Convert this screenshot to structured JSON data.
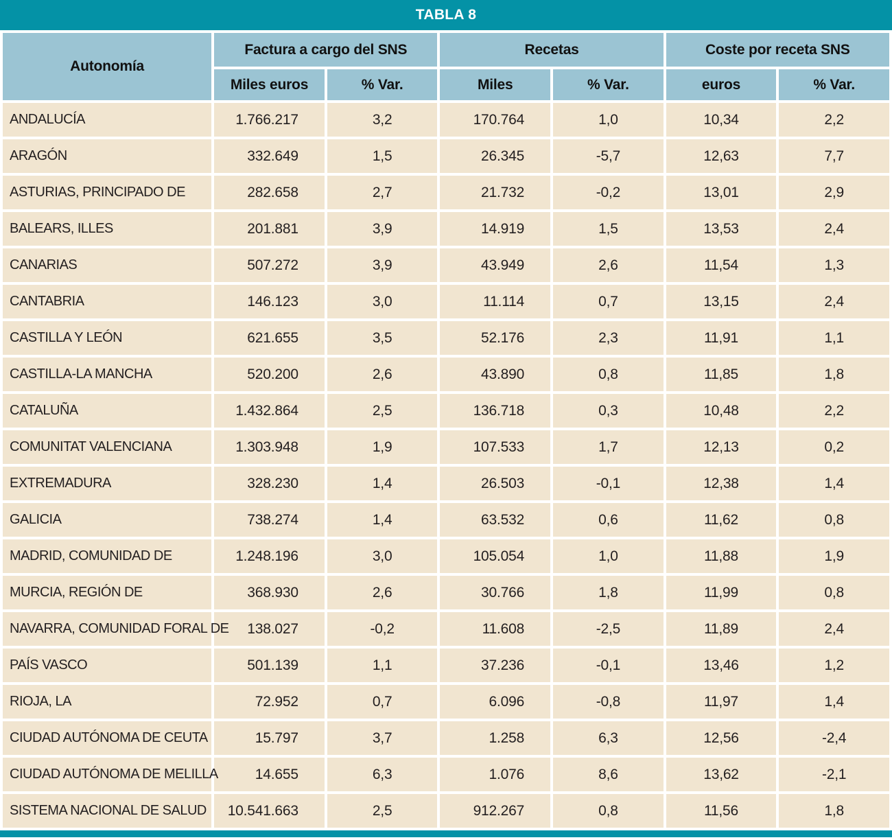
{
  "title": "TABLA 8",
  "columns": {
    "autonomia": "Autonomía",
    "groups": [
      {
        "label": "Factura a cargo del SNS",
        "sub1": "Miles euros",
        "sub2": "% Var."
      },
      {
        "label": "Recetas",
        "sub1": "Miles",
        "sub2": "% Var."
      },
      {
        "label": "Coste por receta SNS",
        "sub1": "euros",
        "sub2": "% Var."
      }
    ]
  },
  "rows": [
    {
      "name": "ANDALUCÍA",
      "factura_miles": "1.766.217",
      "factura_var": "3,2",
      "recetas_miles": "170.764",
      "recetas_var": "1,0",
      "coste_euros": "10,34",
      "coste_var": "2,2"
    },
    {
      "name": "ARAGÓN",
      "factura_miles": "332.649",
      "factura_var": "1,5",
      "recetas_miles": "26.345",
      "recetas_var": "-5,7",
      "coste_euros": "12,63",
      "coste_var": "7,7"
    },
    {
      "name": "ASTURIAS, PRINCIPADO DE",
      "factura_miles": "282.658",
      "factura_var": "2,7",
      "recetas_miles": "21.732",
      "recetas_var": "-0,2",
      "coste_euros": "13,01",
      "coste_var": "2,9"
    },
    {
      "name": "BALEARS, ILLES",
      "factura_miles": "201.881",
      "factura_var": "3,9",
      "recetas_miles": "14.919",
      "recetas_var": "1,5",
      "coste_euros": "13,53",
      "coste_var": "2,4"
    },
    {
      "name": "CANARIAS",
      "factura_miles": "507.272",
      "factura_var": "3,9",
      "recetas_miles": "43.949",
      "recetas_var": "2,6",
      "coste_euros": "11,54",
      "coste_var": "1,3"
    },
    {
      "name": "CANTABRIA",
      "factura_miles": "146.123",
      "factura_var": "3,0",
      "recetas_miles": "11.114",
      "recetas_var": "0,7",
      "coste_euros": "13,15",
      "coste_var": "2,4"
    },
    {
      "name": "CASTILLA Y LEÓN",
      "factura_miles": "621.655",
      "factura_var": "3,5",
      "recetas_miles": "52.176",
      "recetas_var": "2,3",
      "coste_euros": "11,91",
      "coste_var": "1,1"
    },
    {
      "name": "CASTILLA-LA MANCHA",
      "factura_miles": "520.200",
      "factura_var": "2,6",
      "recetas_miles": "43.890",
      "recetas_var": "0,8",
      "coste_euros": "11,85",
      "coste_var": "1,8"
    },
    {
      "name": "CATALUÑA",
      "factura_miles": "1.432.864",
      "factura_var": "2,5",
      "recetas_miles": "136.718",
      "recetas_var": "0,3",
      "coste_euros": "10,48",
      "coste_var": "2,2"
    },
    {
      "name": "COMUNITAT VALENCIANA",
      "factura_miles": "1.303.948",
      "factura_var": "1,9",
      "recetas_miles": "107.533",
      "recetas_var": "1,7",
      "coste_euros": "12,13",
      "coste_var": "0,2"
    },
    {
      "name": "EXTREMADURA",
      "factura_miles": "328.230",
      "factura_var": "1,4",
      "recetas_miles": "26.503",
      "recetas_var": "-0,1",
      "coste_euros": "12,38",
      "coste_var": "1,4"
    },
    {
      "name": "GALICIA",
      "factura_miles": "738.274",
      "factura_var": "1,4",
      "recetas_miles": "63.532",
      "recetas_var": "0,6",
      "coste_euros": "11,62",
      "coste_var": "0,8"
    },
    {
      "name": "MADRID, COMUNIDAD DE",
      "factura_miles": "1.248.196",
      "factura_var": "3,0",
      "recetas_miles": "105.054",
      "recetas_var": "1,0",
      "coste_euros": "11,88",
      "coste_var": "1,9"
    },
    {
      "name": "MURCIA, REGIÓN DE",
      "factura_miles": "368.930",
      "factura_var": "2,6",
      "recetas_miles": "30.766",
      "recetas_var": "1,8",
      "coste_euros": "11,99",
      "coste_var": "0,8"
    },
    {
      "name": "NAVARRA, COMUNIDAD FORAL DE",
      "factura_miles": "138.027",
      "factura_var": "-0,2",
      "recetas_miles": "11.608",
      "recetas_var": "-2,5",
      "coste_euros": "11,89",
      "coste_var": "2,4"
    },
    {
      "name": "PAÍS VASCO",
      "factura_miles": "501.139",
      "factura_var": "1,1",
      "recetas_miles": "37.236",
      "recetas_var": "-0,1",
      "coste_euros": "13,46",
      "coste_var": "1,2"
    },
    {
      "name": "RIOJA, LA",
      "factura_miles": "72.952",
      "factura_var": "0,7",
      "recetas_miles": "6.096",
      "recetas_var": "-0,8",
      "coste_euros": "11,97",
      "coste_var": "1,4"
    },
    {
      "name": "CIUDAD AUTÓNOMA DE CEUTA",
      "factura_miles": "15.797",
      "factura_var": "3,7",
      "recetas_miles": "1.258",
      "recetas_var": "6,3",
      "coste_euros": "12,56",
      "coste_var": "-2,4"
    },
    {
      "name": "CIUDAD AUTÓNOMA DE MELILLA",
      "factura_miles": "14.655",
      "factura_var": "6,3",
      "recetas_miles": "1.076",
      "recetas_var": "8,6",
      "coste_euros": "13,62",
      "coste_var": "-2,1"
    },
    {
      "name": "SISTEMA NACIONAL DE SALUD",
      "factura_miles": "10.541.663",
      "factura_var": "2,5",
      "recetas_miles": "912.267",
      "recetas_var": "0,8",
      "coste_euros": "11,56",
      "coste_var": "1,8"
    }
  ],
  "colors": {
    "teal": "#0492A6",
    "header_blue": "#9BC4D3",
    "row_beige": "#F1E5D0",
    "text": "#231F20",
    "title_text": "#FFFFFF"
  }
}
